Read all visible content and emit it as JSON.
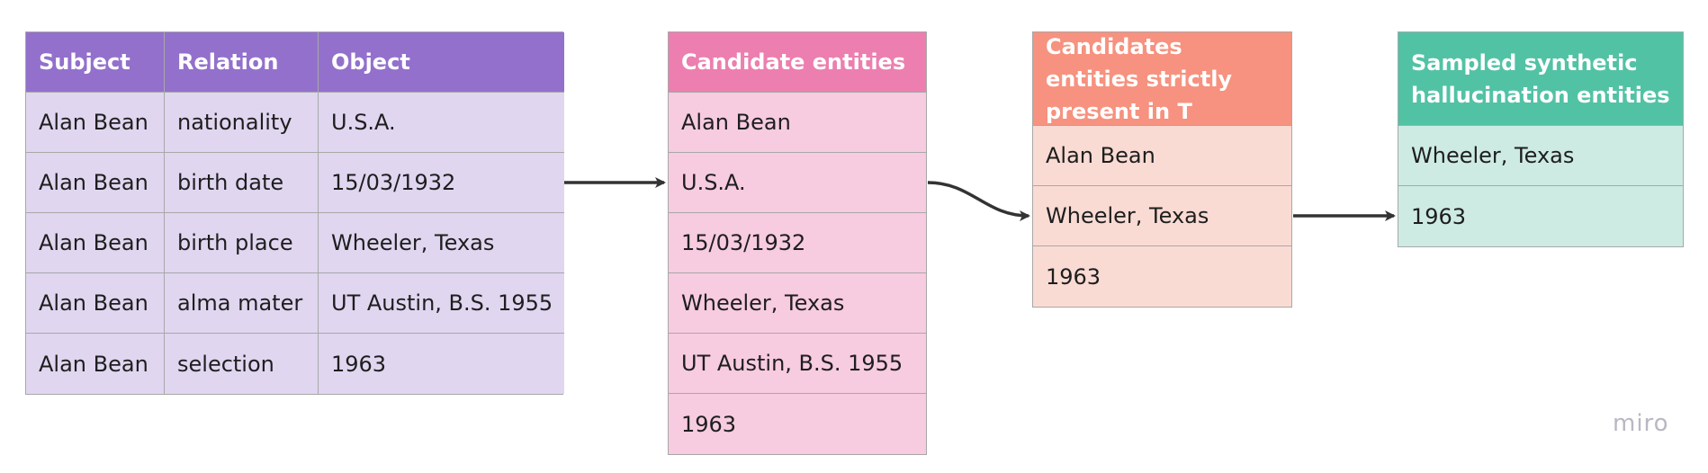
{
  "triples_table": {
    "headers": [
      "Subject",
      "Relation",
      "Object"
    ],
    "rows": [
      [
        "Alan Bean",
        "nationality",
        "U.S.A."
      ],
      [
        "Alan Bean",
        "birth date",
        "15/03/1932"
      ],
      [
        "Alan Bean",
        "birth place",
        "Wheeler, Texas"
      ],
      [
        "Alan Bean",
        "alma mater",
        "UT Austin, B.S. 1955"
      ],
      [
        "Alan Bean",
        "selection",
        "1963"
      ]
    ],
    "colors": {
      "header": "#9370cc",
      "body": "#e0d6f0"
    }
  },
  "candidate_table": {
    "header": "Candidate entities",
    "items": [
      "Alan Bean",
      "U.S.A.",
      "15/03/1932",
      "Wheeler, Texas",
      "UT Austin, B.S. 1955",
      "1963"
    ],
    "colors": {
      "header": "#ec7faf",
      "body": "#f7cbe0"
    }
  },
  "present_table": {
    "header": "Candidates entities strictly present in T",
    "items": [
      "Alan Bean",
      "Wheeler, Texas",
      "1963"
    ],
    "colors": {
      "header": "#f6927f",
      "body": "#f9dbd4"
    }
  },
  "sampled_table": {
    "header": "Sampled synthetic hallucination entities",
    "items": [
      "Wheeler, Texas",
      "1963"
    ],
    "colors": {
      "header": "#52c2a5",
      "body": "#cdebe3"
    }
  },
  "watermark": "miro"
}
